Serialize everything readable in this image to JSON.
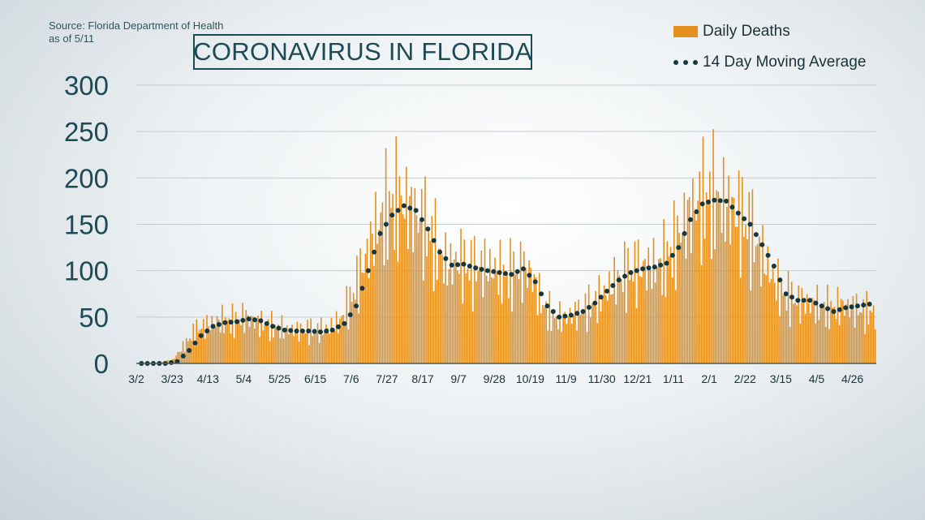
{
  "source_line1": "Source: Florida Department of Health",
  "source_line2": "as of 5/11",
  "title": "CORONAVIRUS IN FLORIDA",
  "legend": {
    "bars_label": "Daily Deaths",
    "line_label": "14 Day Moving Average"
  },
  "colors": {
    "bar": "#e3901f",
    "line": "#16373d",
    "axis_text": "#1c4a55",
    "grid": "#c5cdd1"
  },
  "chart_data": {
    "type": "bar",
    "ylim": [
      0,
      300
    ],
    "yticks": [
      0,
      50,
      100,
      150,
      200,
      250,
      300
    ],
    "xtick_labels": [
      "3/2",
      "3/23",
      "4/13",
      "5/4",
      "5/25",
      "6/15",
      "7/6",
      "7/27",
      "8/17",
      "9/7",
      "9/28",
      "10/19",
      "11/9",
      "11/30",
      "12/21",
      "1/11",
      "2/1",
      "2/22",
      "3/15",
      "4/5",
      "4/26"
    ],
    "weekly_series": {
      "series_names": [
        "Daily Deaths",
        "14 Day Moving Average"
      ],
      "week_starts": [
        "3/2",
        "3/9",
        "3/16",
        "3/23",
        "3/30",
        "4/6",
        "4/13",
        "4/20",
        "4/27",
        "5/4",
        "5/11",
        "5/18",
        "5/25",
        "6/1",
        "6/8",
        "6/15",
        "6/22",
        "6/29",
        "7/6",
        "7/13",
        "7/20",
        "7/27",
        "8/3",
        "8/10",
        "8/17",
        "8/24",
        "8/31",
        "9/7",
        "9/14",
        "9/21",
        "9/28",
        "10/5",
        "10/12",
        "10/19",
        "10/26",
        "11/2",
        "11/9",
        "11/16",
        "11/23",
        "11/30",
        "12/7",
        "12/14",
        "12/21",
        "12/28",
        "1/4",
        "1/11",
        "1/18",
        "1/25",
        "2/1",
        "2/8",
        "2/15",
        "2/22",
        "3/1",
        "3/8",
        "3/15",
        "3/22",
        "3/29",
        "4/5",
        "4/12",
        "4/19",
        "4/26",
        "5/3"
      ],
      "daily_deaths_weekly_avg": [
        0,
        0,
        1,
        4,
        20,
        36,
        42,
        46,
        45,
        50,
        45,
        40,
        38,
        35,
        36,
        35,
        38,
        45,
        70,
        108,
        145,
        165,
        175,
        165,
        150,
        125,
        105,
        110,
        100,
        105,
        100,
        92,
        102,
        98,
        62,
        48,
        50,
        55,
        62,
        72,
        88,
        96,
        102,
        104,
        106,
        125,
        155,
        172,
        178,
        172,
        165,
        150,
        125,
        100,
        75,
        68,
        65,
        62,
        58,
        62,
        60,
        55
      ],
      "moving_average": [
        0,
        0,
        0,
        2,
        14,
        30,
        40,
        44,
        45,
        48,
        46,
        40,
        36,
        35,
        35,
        34,
        36,
        43,
        62,
        100,
        140,
        160,
        170,
        165,
        145,
        120,
        106,
        107,
        103,
        100,
        98,
        96,
        102,
        88,
        62,
        50,
        52,
        56,
        65,
        78,
        90,
        98,
        102,
        104,
        108,
        125,
        155,
        172,
        176,
        175,
        162,
        150,
        128,
        105,
        75,
        68,
        68,
        62,
        56,
        60,
        62,
        64
      ]
    }
  }
}
